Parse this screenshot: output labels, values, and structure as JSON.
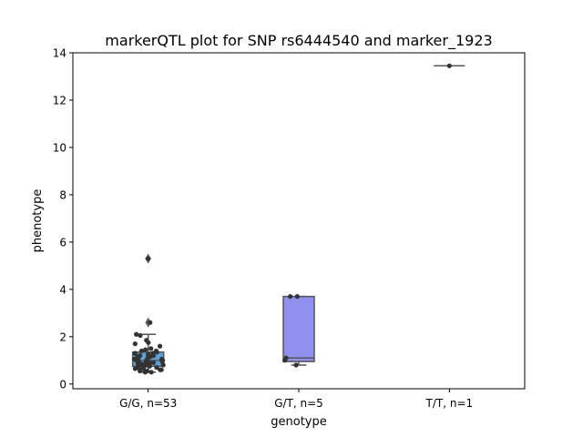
{
  "chart_data": {
    "type": "box",
    "title": "markerQTL plot for SNP rs6444540 and marker_1923",
    "xlabel": "genotype",
    "ylabel": "phenotype",
    "ylim": [
      -0.2,
      14.0
    ],
    "yticks": [
      0,
      2,
      4,
      6,
      8,
      10,
      12,
      14
    ],
    "categories": [
      "G/G, n=53",
      "G/T, n=5",
      "T/T, n=1"
    ],
    "colors": {
      "box_gg": "#5ba3d9",
      "box_gt": "#9090ee",
      "box_tt": "#a89ad8",
      "edge": "#555555",
      "points": "#333333"
    },
    "boxes": [
      {
        "category": "G/G, n=53",
        "q1": 0.75,
        "median": 1.0,
        "q3": 1.35,
        "whisker_low": 0.5,
        "whisker_high": 2.1,
        "outliers": [
          2.6,
          5.3
        ]
      },
      {
        "category": "G/T, n=5",
        "q1": 0.95,
        "median": 1.1,
        "q3": 3.7,
        "whisker_low": 0.8,
        "whisker_high": 3.7,
        "outliers": []
      },
      {
        "category": "T/T, n=1",
        "q1": 13.45,
        "median": 13.45,
        "q3": 13.45,
        "whisker_low": 13.45,
        "whisker_high": 13.45,
        "outliers": []
      }
    ],
    "points": [
      {
        "category": "G/G, n=53",
        "values": [
          5.3,
          2.6,
          2.1,
          2.05,
          1.85,
          1.75,
          1.7,
          1.6,
          1.5,
          1.45,
          1.4,
          1.35,
          1.3,
          1.3,
          1.25,
          1.2,
          1.2,
          1.15,
          1.15,
          1.1,
          1.1,
          1.05,
          1.05,
          1.0,
          1.0,
          1.0,
          0.95,
          0.95,
          0.9,
          0.9,
          0.9,
          0.85,
          0.85,
          0.8,
          0.8,
          0.8,
          0.75,
          0.75,
          0.7,
          0.7,
          0.7,
          0.65,
          0.65,
          0.6,
          0.6,
          0.6,
          0.55,
          0.55,
          0.5,
          0.5,
          1.4,
          1.25,
          1.0
        ]
      },
      {
        "category": "G/T, n=5",
        "values": [
          3.7,
          3.7,
          1.1,
          1.0,
          0.8
        ]
      },
      {
        "category": "T/T, n=1",
        "values": [
          13.45
        ]
      }
    ]
  }
}
